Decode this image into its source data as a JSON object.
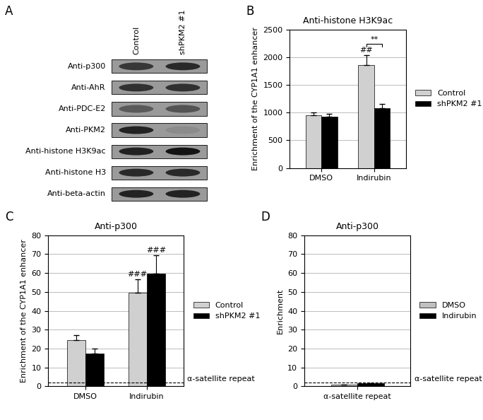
{
  "western_blot": {
    "panel": "A",
    "lanes": [
      "Control",
      "shPKM2 #1"
    ],
    "rows": [
      {
        "label": "Anti-p300",
        "intensity": [
          0.7,
          0.8
        ]
      },
      {
        "label": "Anti-AhR",
        "intensity": [
          0.75,
          0.75
        ]
      },
      {
        "label": "Anti-PDC-E2",
        "intensity": [
          0.45,
          0.5
        ]
      },
      {
        "label": "Anti-PKM2",
        "intensity": [
          0.85,
          0.1
        ]
      },
      {
        "label": "Anti-histone H3K9ac",
        "intensity": [
          0.85,
          0.95
        ]
      },
      {
        "label": "Anti-histone H3",
        "intensity": [
          0.8,
          0.8
        ]
      },
      {
        "label": "Anti-beta-actin",
        "intensity": [
          0.85,
          0.85
        ]
      }
    ]
  },
  "chart_data": [
    {
      "type": "bar",
      "panel": "B",
      "title": "Anti-histone H3K9ac",
      "y_label": "Enrichment of the CYP1A1 enhancer",
      "categories": [
        "DMSO",
        "Indirubin"
      ],
      "series": [
        {
          "name": "Control",
          "color": "#d0d0d0",
          "values": [
            950,
            1860
          ],
          "errors": [
            50,
            180
          ]
        },
        {
          "name": "shPKM2 #1",
          "color": "#000000",
          "values": [
            920,
            1080
          ],
          "errors": [
            60,
            80
          ]
        }
      ],
      "ylim": [
        0,
        2500
      ],
      "yticks": [
        0,
        500,
        1000,
        1500,
        2000,
        2500
      ],
      "grid": true,
      "legend": "right",
      "annotations": [
        {
          "text": "##",
          "category": 1,
          "series": 0
        },
        {
          "text": "**",
          "category": 1,
          "series": [
            0,
            1
          ]
        }
      ]
    },
    {
      "type": "bar",
      "panel": "C",
      "title": "Anti-p300",
      "y_label": "Enrichment of the CYP1A1 enhancer",
      "categories": [
        "DMSO",
        "Indirubin"
      ],
      "series": [
        {
          "name": "Control",
          "color": "#d0d0d0",
          "values": [
            24.5,
            49.5
          ],
          "errors": [
            2.5,
            7
          ]
        },
        {
          "name": "shPKM2 #1",
          "color": "#000000",
          "values": [
            17.5,
            59.5
          ],
          "errors": [
            2.5,
            10
          ]
        }
      ],
      "ylim": [
        0,
        80
      ],
      "yticks": [
        0,
        10,
        20,
        30,
        40,
        50,
        60,
        70,
        80
      ],
      "grid": true,
      "legend": "right",
      "reference_line": {
        "value": 2,
        "label": "α-satellite repeat",
        "line_style": "dashed"
      },
      "annotations": [
        {
          "text": "###",
          "category": 1,
          "series": 0
        },
        {
          "text": "###",
          "category": 1,
          "series": 1
        }
      ]
    },
    {
      "type": "bar",
      "panel": "D",
      "title": "Anti-p300",
      "y_label": "Enrichment",
      "categories": [
        "α-satellite repeat"
      ],
      "series": [
        {
          "name": "DMSO",
          "color": "#c0c0c0",
          "values": [
            1.0
          ],
          "errors": [
            0.1
          ]
        },
        {
          "name": "Indirubin",
          "color": "#000000",
          "values": [
            1.5
          ],
          "errors": [
            0.2
          ]
        }
      ],
      "ylim": [
        0,
        80
      ],
      "yticks": [
        0,
        10,
        20,
        30,
        40,
        50,
        60,
        70,
        80
      ],
      "grid": true,
      "legend": "right",
      "reference_line": {
        "value": 2,
        "label": "α-satellite repeat",
        "line_style": "dashed"
      }
    }
  ]
}
